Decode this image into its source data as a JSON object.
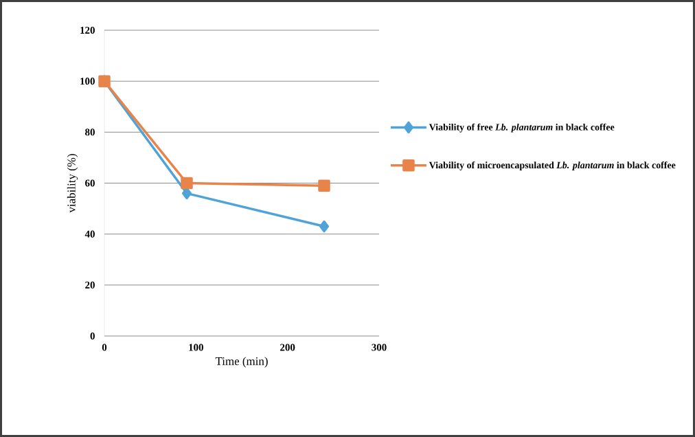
{
  "chart_data": {
    "type": "line",
    "xlabel": "Time (min)",
    "ylabel": "viability (%)",
    "x": [
      0,
      90,
      240
    ],
    "series": [
      {
        "name": "Viability of free *Lb. plantarum* in black coffee",
        "color": "#4fa3d8",
        "marker": "diamond",
        "values": [
          100,
          56,
          43
        ]
      },
      {
        "name": "Viability of microencapsulated *Lb. plantarum* in black coffee",
        "color": "#e8834a",
        "marker": "square",
        "values": [
          100,
          60,
          59
        ]
      }
    ],
    "xlim": [
      0,
      300
    ],
    "ylim": [
      0,
      120
    ],
    "xticks": [
      0,
      100,
      200,
      300
    ],
    "yticks": [
      0,
      20,
      40,
      60,
      80,
      100,
      120
    ],
    "grid": "y",
    "legend": "right",
    "line_style": "solid"
  }
}
